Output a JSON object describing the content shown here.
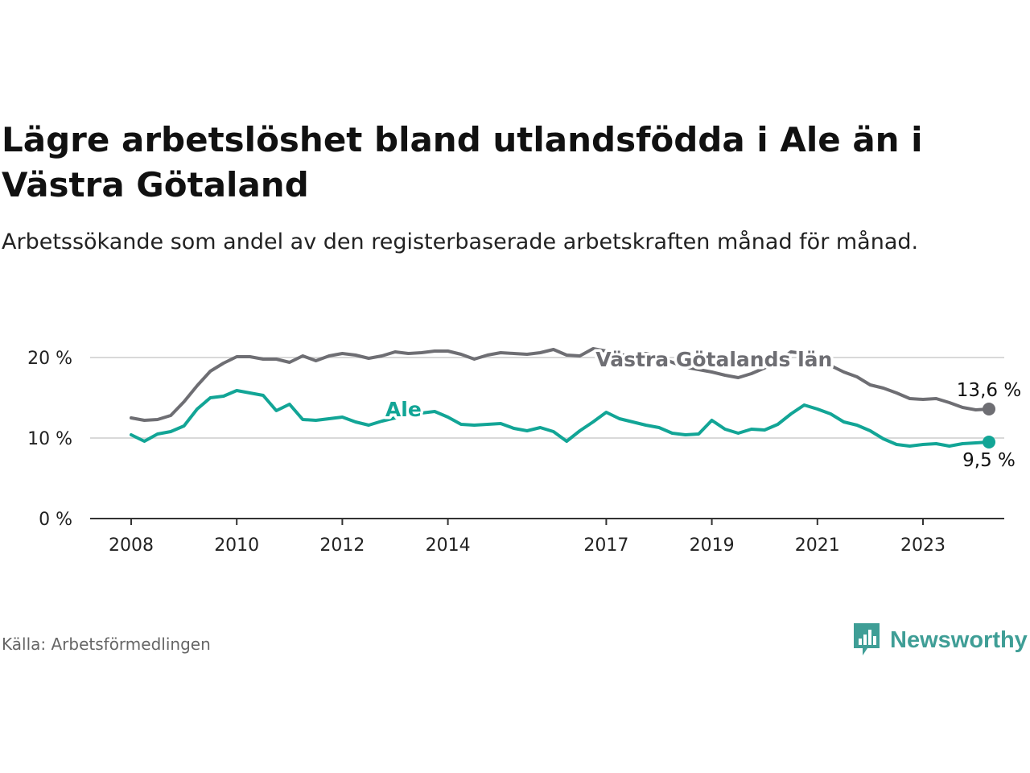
{
  "header": {
    "title": "Lägre arbetslöshet bland utlandsfödda i Ale än i Västra Götaland",
    "subtitle": "Arbetssökande som andel av den registerbaserade arbetskraften månad för månad."
  },
  "footer": {
    "source": "Källa: Arbetsförmedlingen",
    "brand": "Newsworthy"
  },
  "colors": {
    "ale": "#12a596",
    "vastra_gotaland": "#6e6e73",
    "grid": "#d9d9d9",
    "axis": "#333333",
    "brand": "#3f9e96"
  },
  "chart_data": {
    "type": "line",
    "title": "Lägre arbetslöshet bland utlandsfödda i Ale än i Västra Götaland",
    "xlabel": "",
    "ylabel": "",
    "ylim": [
      0,
      20
    ],
    "xlim": [
      2008.0,
      2024.5
    ],
    "grid": true,
    "y_ticks": [
      0,
      10,
      20
    ],
    "y_tick_labels": [
      "0 %",
      "10 %",
      "20 %"
    ],
    "x_ticks": [
      2008,
      2010,
      2012,
      2014,
      2017,
      2019,
      2021,
      2023
    ],
    "x_tick_labels": [
      "2008",
      "2010",
      "2012",
      "2014",
      "2017",
      "2019",
      "2021",
      "2023"
    ],
    "series": [
      {
        "name": "Västra Götalands län",
        "label": "Västra Götalands län",
        "end_label": "13,6 %",
        "end_value": 13.6,
        "x": [
          2008.0,
          2008.25,
          2008.5,
          2008.75,
          2009.0,
          2009.25,
          2009.5,
          2009.75,
          2010.0,
          2010.25,
          2010.5,
          2010.75,
          2011.0,
          2011.25,
          2011.5,
          2011.75,
          2012.0,
          2012.25,
          2012.5,
          2012.75,
          2013.0,
          2013.25,
          2013.5,
          2013.75,
          2014.0,
          2014.25,
          2014.5,
          2014.75,
          2015.0,
          2015.25,
          2015.5,
          2015.75,
          2016.0,
          2016.25,
          2016.5,
          2016.75,
          2017.0,
          2017.25,
          2017.5,
          2017.75,
          2018.0,
          2018.25,
          2018.5,
          2018.75,
          2019.0,
          2019.25,
          2019.5,
          2019.75,
          2020.0,
          2020.25,
          2020.5,
          2020.75,
          2021.0,
          2021.25,
          2021.5,
          2021.75,
          2022.0,
          2022.25,
          2022.5,
          2022.75,
          2023.0,
          2023.25,
          2023.5,
          2023.75,
          2024.0,
          2024.25
        ],
        "values": [
          12.5,
          12.2,
          12.3,
          12.8,
          14.5,
          16.5,
          18.3,
          19.3,
          20.1,
          20.1,
          19.8,
          19.8,
          19.4,
          20.2,
          19.6,
          20.2,
          20.5,
          20.3,
          19.9,
          20.2,
          20.7,
          20.5,
          20.6,
          20.8,
          20.8,
          20.4,
          19.8,
          20.3,
          20.6,
          20.5,
          20.4,
          20.6,
          21.0,
          20.3,
          20.2,
          21.1,
          20.8,
          20.4,
          20.1,
          20.5,
          20.1,
          19.4,
          18.8,
          18.5,
          18.2,
          17.8,
          17.5,
          18.0,
          18.7,
          19.5,
          20.7,
          20.5,
          20.1,
          19.0,
          18.2,
          17.6,
          16.6,
          16.2,
          15.6,
          14.9,
          14.8,
          14.9,
          14.4,
          13.8,
          13.5,
          13.6
        ]
      },
      {
        "name": "Ale",
        "label": "Ale",
        "end_label": "9,5 %",
        "end_value": 9.5,
        "x": [
          2008.0,
          2008.25,
          2008.5,
          2008.75,
          2009.0,
          2009.25,
          2009.5,
          2009.75,
          2010.0,
          2010.25,
          2010.5,
          2010.75,
          2011.0,
          2011.25,
          2011.5,
          2011.75,
          2012.0,
          2012.25,
          2012.5,
          2012.75,
          2013.0,
          2013.25,
          2013.5,
          2013.75,
          2014.0,
          2014.25,
          2014.5,
          2014.75,
          2015.0,
          2015.25,
          2015.5,
          2015.75,
          2016.0,
          2016.25,
          2016.5,
          2016.75,
          2017.0,
          2017.25,
          2017.5,
          2017.75,
          2018.0,
          2018.25,
          2018.5,
          2018.75,
          2019.0,
          2019.25,
          2019.5,
          2019.75,
          2020.0,
          2020.25,
          2020.5,
          2020.75,
          2021.0,
          2021.25,
          2021.5,
          2021.75,
          2022.0,
          2022.25,
          2022.5,
          2022.75,
          2023.0,
          2023.25,
          2023.5,
          2023.75,
          2024.0,
          2024.25
        ],
        "values": [
          10.4,
          9.6,
          10.5,
          10.8,
          11.5,
          13.6,
          15.0,
          15.2,
          15.9,
          15.6,
          15.3,
          13.4,
          14.2,
          12.3,
          12.2,
          12.4,
          12.6,
          12.0,
          11.6,
          12.1,
          12.5,
          13.0,
          13.1,
          13.3,
          12.6,
          11.7,
          11.6,
          11.7,
          11.8,
          11.2,
          10.9,
          11.3,
          10.8,
          9.6,
          10.9,
          12.0,
          13.2,
          12.4,
          12.0,
          11.6,
          11.3,
          10.6,
          10.4,
          10.5,
          12.2,
          11.1,
          10.6,
          11.1,
          11.0,
          11.7,
          13.0,
          14.1,
          13.6,
          13.0,
          12.0,
          11.6,
          10.9,
          9.9,
          9.2,
          9.0,
          9.2,
          9.3,
          9.0,
          9.3,
          9.4,
          9.5
        ]
      }
    ]
  }
}
